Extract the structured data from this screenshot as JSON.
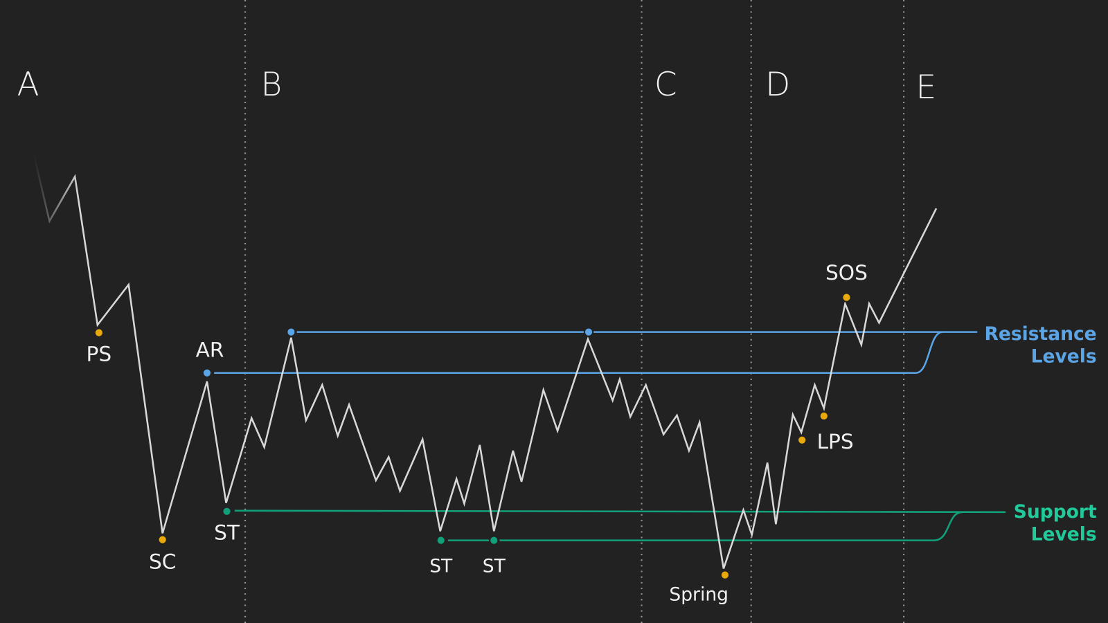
{
  "phases": [
    "A",
    "B",
    "C",
    "D",
    "E"
  ],
  "events": {
    "ps": "PS",
    "sc": "SC",
    "ar": "AR",
    "st1": "ST",
    "st2": "ST",
    "st3": "ST",
    "spring": "Spring",
    "lps": "LPS",
    "sos": "SOS"
  },
  "legend": {
    "resistance": [
      "Resistance",
      "Levels"
    ],
    "support": [
      "Support",
      "Levels"
    ]
  }
}
